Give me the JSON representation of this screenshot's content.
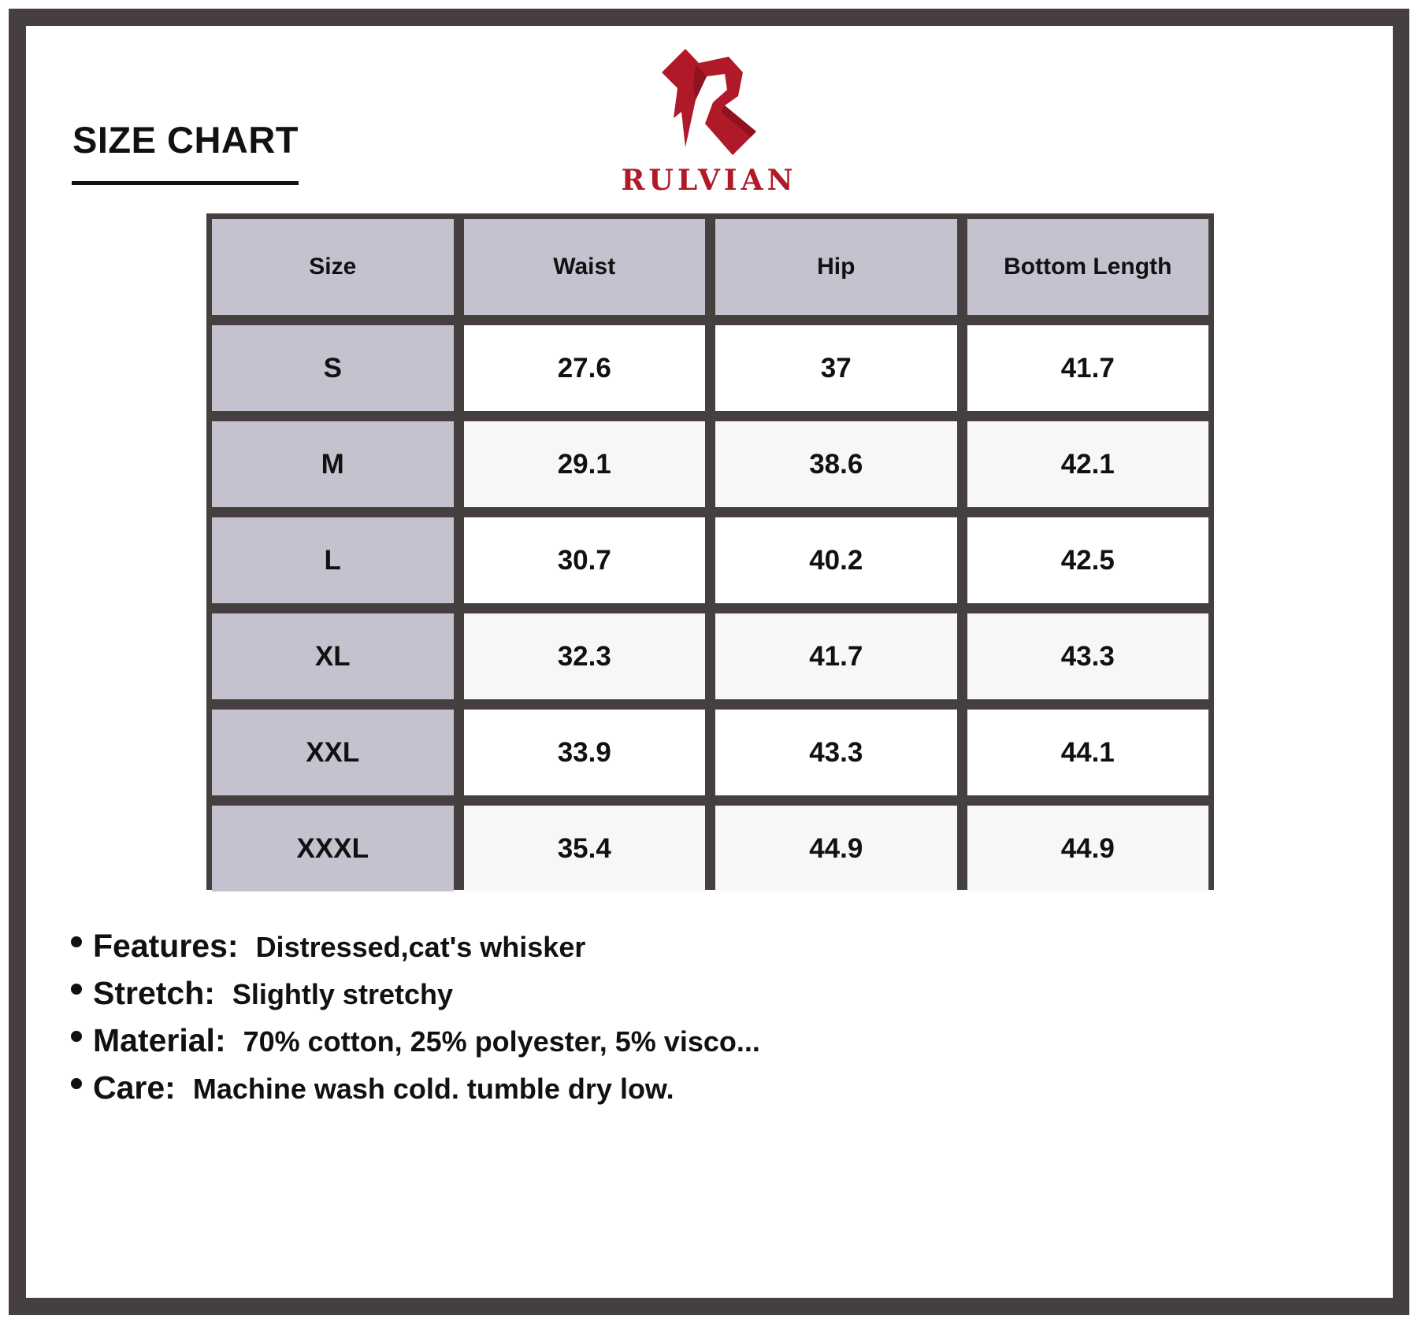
{
  "title": "SIZE CHART",
  "brand": {
    "name": "RULVIAN",
    "color": "#b01928"
  },
  "table": {
    "headers": [
      "Size",
      "Waist",
      "Hip",
      "Bottom Length"
    ],
    "rows": [
      [
        "S",
        "27.6",
        "37",
        "41.7"
      ],
      [
        "M",
        "29.1",
        "38.6",
        "42.1"
      ],
      [
        "L",
        "30.7",
        "40.2",
        "42.5"
      ],
      [
        "XL",
        "32.3",
        "41.7",
        "43.3"
      ],
      [
        "XXL",
        "33.9",
        "43.3",
        "44.1"
      ],
      [
        "XXXL",
        "35.4",
        "44.9",
        "44.9"
      ]
    ]
  },
  "features": [
    {
      "label": "Features:",
      "value": "Distressed,cat's whisker"
    },
    {
      "label": "Stretch:",
      "value": "Slightly stretchy"
    },
    {
      "label": "Material:",
      "value": "70% cotton, 25% polyester, 5% visco..."
    },
    {
      "label": "Care:",
      "value": "Machine wash cold. tumble dry low."
    }
  ]
}
